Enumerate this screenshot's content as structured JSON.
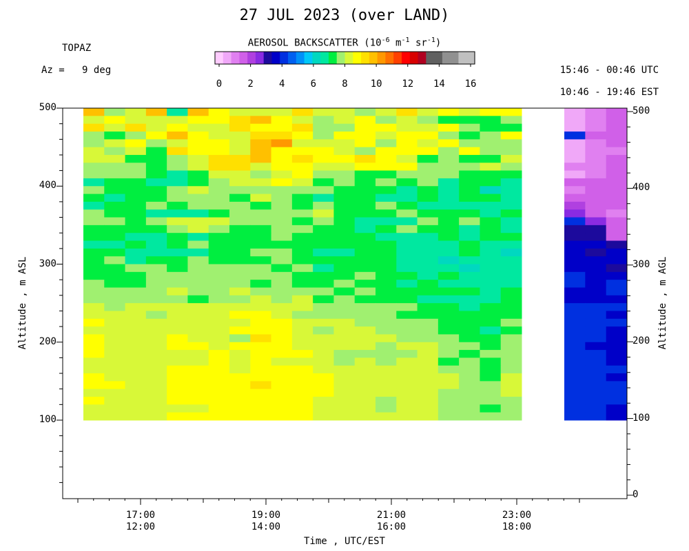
{
  "chart_data": {
    "type": "heatmap",
    "title": "27 JUL 2023 (over LAND)",
    "site": "TOPAZ",
    "azimuth_label": "Az =   9 deg",
    "utc_range": "15:46 - 00:46 UTC",
    "est_range": "10:46 - 19:46 EST",
    "xlabel": "Time , UTC/EST",
    "ylabel_left": "Altitude , m ASL",
    "ylabel_right": "Altitude , m AGL",
    "x_ticks_utc": [
      "17:00",
      "19:00",
      "21:00",
      "23:00"
    ],
    "x_ticks_est": [
      "12:00",
      "14:00",
      "16:00",
      "18:00"
    ],
    "y_ticks_left": [
      "100",
      "200",
      "300",
      "400",
      "500"
    ],
    "y_ticks_right": [
      "0",
      "100",
      "200",
      "300",
      "400",
      "500"
    ],
    "colorbar": {
      "label": "AEROSOL BACKSCATTER (10",
      "label_exp1": "-6",
      "label_mid": " m",
      "label_exp2": "-1",
      "label_mid2": " sr",
      "label_exp3": "-1",
      "label_end": ")",
      "ticks": [
        "0",
        "2",
        "4",
        "6",
        "8",
        "10",
        "12",
        "14",
        "16"
      ],
      "range": [
        0,
        16
      ],
      "colors": [
        "#ffccff",
        "#f0a8f8",
        "#e080f0",
        "#d060e8",
        "#b040e0",
        "#8a2be2",
        "#1c0a9c",
        "#0000c8",
        "#0030e0",
        "#0060f0",
        "#0090f8",
        "#00c8f8",
        "#00d8c0",
        "#00e8a0",
        "#00ee40",
        "#a0f070",
        "#d8f838",
        "#ffff00",
        "#ffe000",
        "#ffc000",
        "#ff9800",
        "#ff7000",
        "#ff4000",
        "#ff0000",
        "#d80000",
        "#b00020",
        "#606060",
        "#606060",
        "#909090",
        "#909090",
        "#c0c0c0",
        "#c0c0c0"
      ]
    },
    "main_grid": {
      "x_range_utc_hours": [
        15.77,
        22.83
      ],
      "altitude_range_asl": [
        100,
        500
      ],
      "columns": 21,
      "rows": 40,
      "values": [
        [
          9.5,
          7.5,
          8.0,
          9.5,
          6.5,
          9.8,
          8.5,
          8.4,
          8.3,
          8.0,
          9.2,
          8.0,
          8.4,
          7.9,
          8.3,
          9.0,
          8.3,
          8.5,
          8.3,
          8.9,
          8.6
        ],
        [
          8.3,
          8.5,
          8.0,
          8.0,
          8.3,
          8.6,
          8.9,
          9.4,
          9.6,
          8.8,
          8.3,
          7.8,
          8.2,
          8.5,
          7.8,
          8.0,
          7.8,
          7.2,
          7.3,
          7.0,
          7.7
        ],
        [
          9.0,
          8.0,
          9.0,
          8.3,
          8.6,
          8.4,
          8.1,
          9.2,
          8.9,
          8.7,
          9.2,
          7.6,
          7.7,
          8.8,
          8.6,
          8.4,
          8.1,
          8.5,
          7.6,
          7.0,
          7.4
        ],
        [
          7.6,
          7.4,
          7.8,
          8.7,
          9.6,
          8.5,
          8.0,
          8.2,
          9.4,
          9.0,
          8.5,
          7.8,
          8.5,
          8.6,
          8.1,
          8.5,
          8.9,
          7.7,
          7.1,
          7.9,
          8.6
        ],
        [
          7.5,
          8.0,
          8.8,
          7.8,
          8.1,
          8.8,
          8.5,
          8.4,
          9.5,
          10.0,
          8.3,
          8.1,
          8.0,
          8.8,
          7.9,
          8.5,
          8.0,
          8.6,
          7.9,
          7.6,
          7.8
        ],
        [
          8.1,
          7.7,
          8.1,
          7.2,
          9.0,
          8.6,
          8.5,
          8.2,
          9.5,
          8.9,
          8.8,
          8.9,
          8.4,
          7.8,
          8.5,
          8.7,
          8.8,
          7.6,
          8.6,
          7.9,
          7.7
        ],
        [
          8.0,
          8.0,
          7.3,
          7.4,
          7.8,
          8.3,
          9.2,
          9.4,
          9.5,
          8.8,
          9.0,
          8.7,
          8.6,
          9.0,
          8.5,
          8.3,
          7.3,
          7.8,
          7.4,
          7.2,
          8.0
        ],
        [
          7.6,
          7.8,
          7.6,
          7.2,
          7.8,
          8.3,
          9.2,
          9.2,
          8.0,
          8.5,
          8.8,
          8.3,
          8.3,
          8.5,
          8.6,
          8.5,
          7.6,
          7.6,
          7.7,
          8.3,
          7.7
        ],
        [
          7.6,
          7.9,
          7.8,
          7.1,
          6.8,
          7.4,
          8.0,
          8.0,
          7.8,
          8.0,
          8.5,
          7.9,
          7.7,
          7.4,
          7.3,
          7.9,
          7.8,
          7.8,
          7.4,
          7.2,
          7.0
        ],
        [
          6.8,
          7.3,
          7.0,
          6.6,
          6.6,
          7.0,
          7.6,
          8.1,
          8.2,
          8.6,
          8.0,
          7.3,
          7.6,
          7.2,
          7.8,
          7.2,
          7.8,
          6.7,
          7.3,
          7.1,
          6.9
        ],
        [
          7.5,
          7.0,
          7.2,
          7.0,
          7.5,
          8.0,
          7.5,
          7.8,
          7.7,
          7.9,
          7.8,
          7.7,
          7.2,
          7.4,
          7.0,
          6.6,
          7.0,
          6.9,
          7.4,
          6.4,
          6.6
        ],
        [
          7.1,
          6.9,
          7.3,
          7.2,
          7.5,
          7.7,
          7.9,
          7.4,
          8.0,
          7.9,
          7.4,
          6.8,
          7.3,
          7.4,
          6.7,
          6.8,
          7.1,
          6.7,
          7.3,
          7.0,
          6.9
        ],
        [
          6.9,
          7.0,
          7.2,
          7.5,
          7.2,
          7.6,
          7.6,
          7.5,
          7.3,
          7.5,
          7.3,
          7.8,
          7.4,
          7.1,
          7.6,
          7.3,
          6.9,
          6.8,
          6.8,
          6.6,
          6.7
        ],
        [
          7.6,
          7.3,
          7.0,
          6.8,
          6.6,
          6.6,
          7.2,
          7.7,
          7.9,
          7.8,
          7.8,
          8.0,
          7.4,
          7.3,
          7.3,
          7.6,
          7.0,
          7.4,
          7.3,
          6.9,
          7.4
        ],
        [
          7.7,
          7.5,
          7.3,
          7.5,
          8.0,
          8.0,
          8.3,
          7.9,
          7.8,
          7.8,
          7.4,
          7.5,
          7.0,
          6.6,
          6.7,
          6.8,
          7.6,
          7.2,
          7.5,
          7.2,
          6.8
        ],
        [
          7.2,
          7.1,
          7.0,
          7.3,
          7.7,
          8.1,
          7.8,
          7.4,
          7.4,
          7.5,
          7.5,
          7.2,
          7.2,
          6.8,
          7.1,
          7.5,
          7.3,
          7.1,
          6.9,
          7.3,
          6.9
        ],
        [
          7.2,
          7.2,
          6.9,
          6.8,
          7.0,
          6.7,
          7.0,
          7.0,
          7.1,
          7.8,
          7.3,
          7.2,
          7.2,
          7.3,
          6.8,
          6.5,
          6.8,
          7.2,
          6.9,
          7.3,
          7.1
        ],
        [
          6.8,
          6.8,
          7.1,
          6.9,
          7.2,
          7.5,
          7.3,
          7.1,
          7.3,
          7.1,
          7.2,
          7.0,
          7.2,
          7.1,
          7.2,
          6.5,
          6.7,
          6.7,
          7.1,
          6.8,
          6.6
        ],
        [
          7.0,
          7.1,
          6.8,
          6.6,
          6.8,
          6.8,
          7.2,
          7.3,
          7.6,
          7.7,
          7.2,
          6.6,
          6.6,
          7.1,
          7.0,
          6.9,
          6.9,
          6.8,
          7.1,
          6.8,
          6.3
        ],
        [
          7.3,
          7.5,
          6.9,
          7.1,
          7.1,
          7.6,
          7.3,
          7.2,
          7.1,
          7.5,
          7.2,
          7.4,
          7.2,
          7.0,
          7.2,
          6.8,
          6.5,
          6.4,
          6.6,
          6.8,
          6.6
        ],
        [
          7.4,
          7.1,
          7.5,
          7.7,
          7.3,
          7.6,
          7.8,
          7.7,
          7.9,
          7.4,
          7.5,
          6.9,
          7.2,
          7.0,
          7.2,
          6.6,
          6.9,
          6.8,
          6.4,
          6.5,
          6.7
        ],
        [
          7.2,
          7.3,
          7.1,
          7.8,
          7.8,
          7.6,
          7.6,
          7.8,
          7.6,
          7.5,
          7.4,
          7.2,
          7.0,
          7.6,
          7.4,
          7.2,
          6.9,
          7.0,
          6.8,
          6.9,
          6.6
        ],
        [
          7.5,
          7.3,
          7.4,
          7.5,
          7.6,
          7.7,
          7.5,
          7.6,
          7.4,
          7.6,
          7.4,
          7.4,
          7.5,
          7.3,
          7.3,
          6.9,
          7.0,
          6.6,
          6.7,
          6.7,
          6.8
        ],
        [
          7.8,
          7.9,
          7.6,
          7.7,
          8.0,
          7.8,
          7.8,
          8.1,
          7.8,
          7.5,
          7.6,
          7.6,
          7.4,
          7.8,
          7.2,
          7.0,
          7.2,
          7.0,
          7.0,
          6.8,
          7.0
        ],
        [
          7.8,
          7.6,
          7.7,
          7.6,
          7.7,
          7.4,
          7.8,
          7.9,
          8.4,
          7.9,
          8.0,
          7.3,
          7.5,
          7.4,
          7.0,
          7.0,
          6.9,
          6.8,
          6.9,
          6.9,
          7.1
        ],
        [
          8.1,
          7.8,
          8.2,
          8.0,
          8.2,
          8.3,
          8.1,
          8.3,
          8.3,
          8.1,
          8.0,
          7.7,
          7.6,
          7.8,
          7.8,
          7.5,
          7.0,
          7.0,
          6.8,
          7.0,
          7.2
        ],
        [
          8.4,
          8.0,
          8.2,
          7.9,
          8.0,
          8.4,
          8.1,
          8.7,
          8.5,
          8.3,
          7.8,
          7.6,
          7.8,
          7.9,
          7.5,
          7.4,
          7.4,
          7.1,
          7.2,
          7.0,
          7.4
        ],
        [
          8.6,
          8.3,
          8.0,
          8.2,
          8.1,
          8.4,
          8.0,
          8.4,
          8.6,
          8.6,
          8.4,
          8.0,
          8.1,
          7.9,
          7.8,
          7.6,
          7.6,
          7.3,
          7.4,
          7.0,
          7.5
        ],
        [
          8.4,
          8.2,
          8.2,
          8.0,
          8.2,
          8.3,
          8.2,
          8.6,
          8.6,
          8.8,
          8.3,
          7.9,
          8.1,
          8.0,
          7.9,
          7.7,
          7.5,
          7.3,
          7.4,
          6.9,
          7.4
        ],
        [
          8.6,
          8.2,
          8.2,
          8.0,
          8.6,
          8.1,
          8.3,
          7.8,
          9.1,
          8.6,
          8.3,
          8.2,
          8.0,
          8.0,
          8.0,
          7.7,
          7.8,
          7.8,
          7.4,
          7.3,
          7.7
        ],
        [
          8.9,
          8.3,
          8.4,
          8.3,
          8.5,
          8.5,
          8.4,
          8.7,
          8.7,
          8.7,
          8.4,
          8.1,
          8.0,
          8.1,
          7.8,
          8.0,
          8.2,
          7.6,
          7.6,
          7.3,
          7.9
        ],
        [
          8.5,
          8.1,
          8.3,
          8.0,
          8.1,
          8.3,
          8.5,
          8.3,
          8.5,
          8.6,
          8.6,
          8.2,
          7.9,
          7.9,
          7.7,
          7.8,
          8.1,
          7.8,
          7.4,
          7.5,
          7.8
        ],
        [
          8.3,
          8.1,
          8.2,
          8.1,
          8.3,
          8.4,
          8.5,
          8.3,
          8.5,
          8.3,
          8.4,
          8.2,
          7.8,
          8.0,
          7.8,
          8.0,
          8.0,
          7.4,
          7.7,
          7.1,
          7.6
        ],
        [
          8.3,
          8.2,
          8.0,
          8.3,
          8.5,
          8.5,
          8.6,
          8.2,
          8.7,
          8.7,
          8.6,
          8.4,
          8.0,
          8.2,
          8.0,
          8.0,
          8.1,
          7.9,
          7.6,
          7.3,
          7.7
        ],
        [
          8.5,
          8.4,
          8.3,
          8.3,
          8.5,
          8.6,
          8.5,
          8.7,
          8.9,
          8.9,
          8.7,
          8.6,
          8.3,
          8.2,
          8.1,
          8.1,
          8.2,
          8.0,
          7.8,
          7.4,
          8.0
        ],
        [
          8.6,
          8.5,
          8.4,
          8.4,
          8.7,
          8.6,
          8.7,
          8.5,
          9.0,
          8.9,
          8.8,
          8.6,
          8.4,
          8.3,
          8.2,
          8.3,
          8.3,
          8.1,
          7.9,
          7.6,
          8.1
        ],
        [
          8.4,
          8.3,
          8.2,
          8.3,
          8.6,
          8.6,
          8.6,
          8.6,
          8.9,
          8.9,
          8.7,
          8.5,
          8.3,
          8.2,
          8.0,
          8.1,
          8.2,
          7.9,
          7.9,
          7.6,
          8.0
        ],
        [
          8.5,
          8.4,
          8.2,
          8.4,
          8.5,
          8.5,
          8.6,
          8.6,
          8.8,
          8.8,
          8.6,
          8.4,
          8.2,
          8.1,
          7.9,
          8.1,
          8.2,
          7.8,
          7.8,
          7.6,
          7.9
        ],
        [
          8.3,
          8.2,
          8.0,
          8.0,
          8.3,
          8.4,
          8.5,
          8.6,
          8.9,
          8.7,
          8.6,
          8.3,
          8.1,
          8.1,
          7.9,
          8.0,
          8.1,
          7.8,
          7.6,
          7.3,
          7.8
        ],
        [
          8.4,
          8.3,
          8.1,
          8.2,
          8.5,
          8.6,
          8.5,
          8.6,
          8.8,
          8.7,
          8.7,
          8.4,
          8.2,
          8.2,
          8.1,
          8.0,
          8.2,
          7.9,
          7.8,
          7.5,
          7.9
        ]
      ]
    },
    "side_grid": {
      "columns": 3,
      "rows": 40,
      "values": [
        [
          0.8,
          1.2,
          1.7
        ],
        [
          0.5,
          1.3,
          1.8
        ],
        [
          0.9,
          1.4,
          1.5
        ],
        [
          4.0,
          1.5,
          1.6
        ],
        [
          0.8,
          1.2,
          1.8
        ],
        [
          0.7,
          1.2,
          1.4
        ],
        [
          0.9,
          1.4,
          1.5
        ],
        [
          1.0,
          1.3,
          1.5
        ],
        [
          0.9,
          1.4,
          1.6
        ],
        [
          1.6,
          1.7,
          1.6
        ],
        [
          1.4,
          1.6,
          1.6
        ],
        [
          1.5,
          1.7,
          1.6
        ],
        [
          2.2,
          1.7,
          1.6
        ],
        [
          2.5,
          1.5,
          1.4
        ],
        [
          4.4,
          2.7,
          1.5
        ],
        [
          3.3,
          3.3,
          1.5
        ],
        [
          3.2,
          3.2,
          1.6
        ],
        [
          3.8,
          3.7,
          3.2
        ],
        [
          3.9,
          3.2,
          3.8
        ],
        [
          3.5,
          3.5,
          3.7
        ],
        [
          3.7,
          3.6,
          3.4
        ],
        [
          4.2,
          3.5,
          3.6
        ],
        [
          4.0,
          3.6,
          4.2
        ],
        [
          3.8,
          3.8,
          4.0
        ],
        [
          3.9,
          3.6,
          3.8
        ],
        [
          4.3,
          4.2,
          4.0
        ],
        [
          4.0,
          4.0,
          3.8
        ],
        [
          4.1,
          4.0,
          4.1
        ],
        [
          4.2,
          4.2,
          3.9
        ],
        [
          4.2,
          4.0,
          3.8
        ],
        [
          4.0,
          3.8,
          3.7
        ],
        [
          4.1,
          4.0,
          3.8
        ],
        [
          4.2,
          4.1,
          3.9
        ],
        [
          4.3,
          4.3,
          4.2
        ],
        [
          4.0,
          4.0,
          3.9
        ],
        [
          4.2,
          4.3,
          4.1
        ],
        [
          4.1,
          4.2,
          4.0
        ],
        [
          4.3,
          4.3,
          4.2
        ],
        [
          4.2,
          4.1,
          3.9
        ],
        [
          4.1,
          4.0,
          3.7
        ]
      ]
    }
  }
}
